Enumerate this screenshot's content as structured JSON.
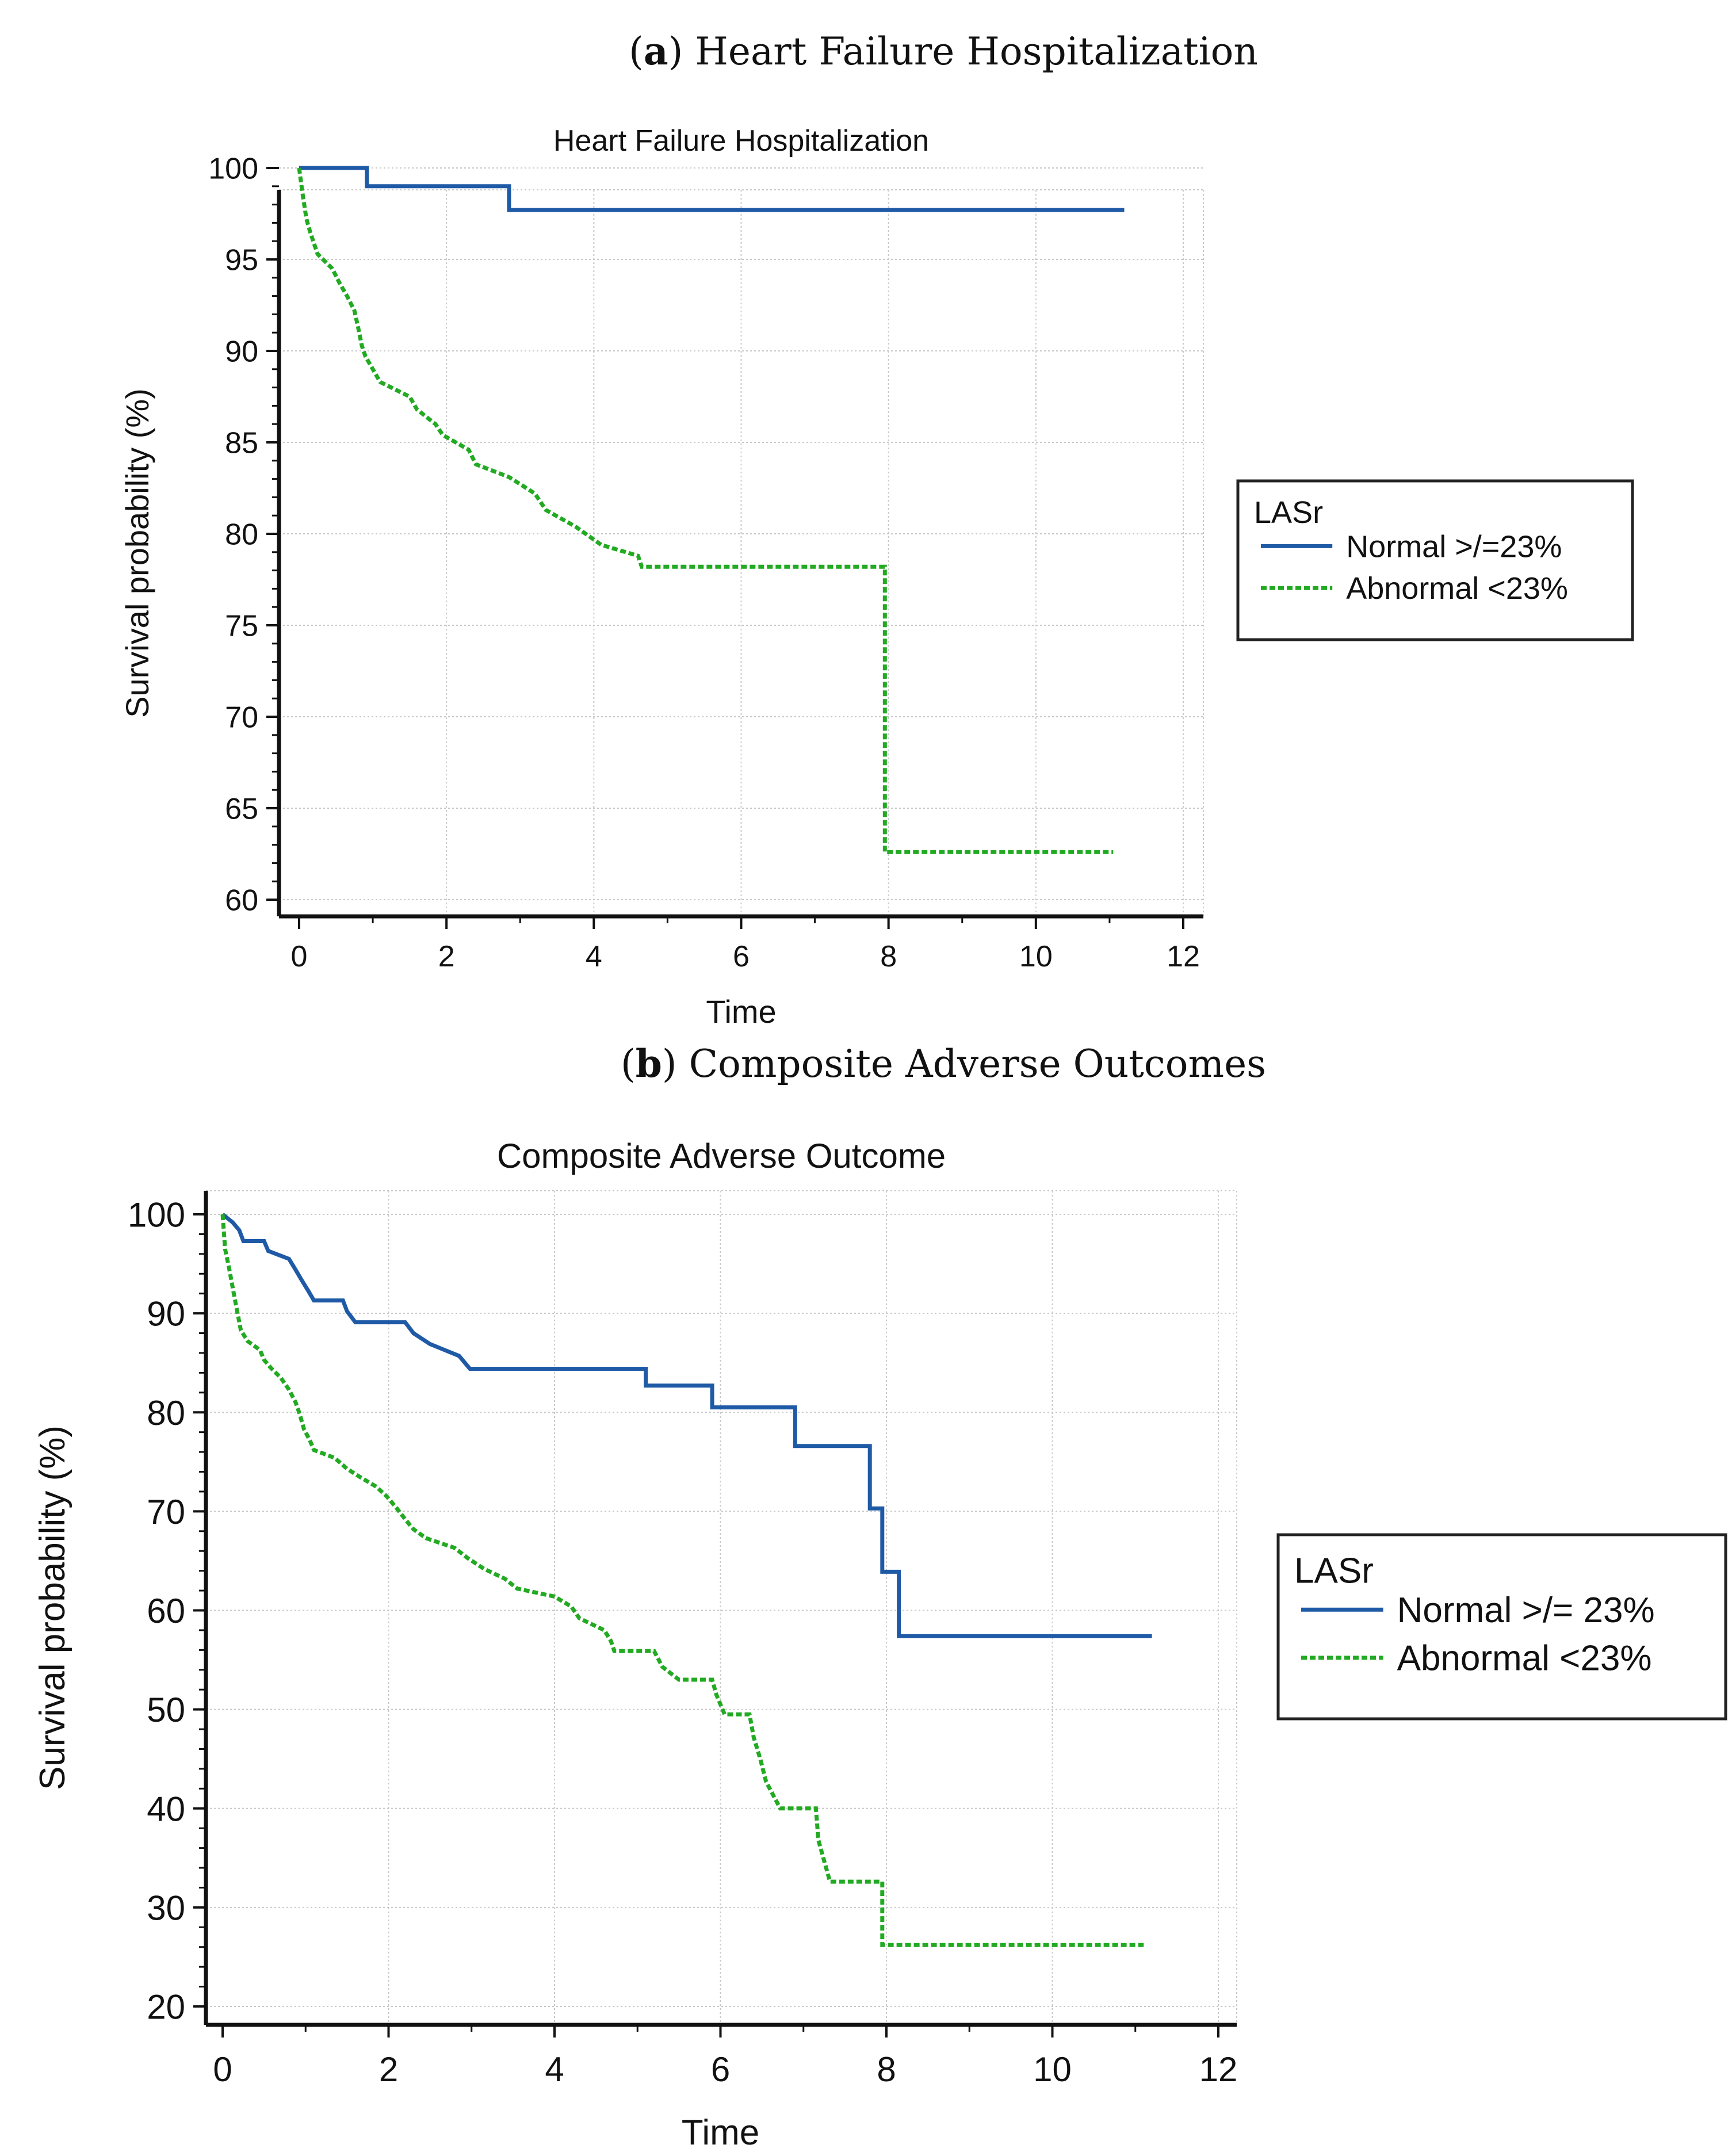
{
  "panels": [
    {
      "caption_letter": "a",
      "caption_text": " Heart Failure Hospitalization",
      "chart_data": {
        "type": "line",
        "subtype": "kaplan-meier step",
        "title": "Heart Failure Hospitalization",
        "xlabel": "Time",
        "ylabel": "Survival probability (%)",
        "xlim": [
          0,
          12
        ],
        "ylim": [
          60,
          100
        ],
        "xticks": [
          0,
          2,
          4,
          6,
          8,
          10,
          12
        ],
        "yticks": [
          60,
          65,
          70,
          75,
          80,
          85,
          90,
          95,
          100
        ],
        "grid": true,
        "legend_title": "LASr",
        "legend_position": "right",
        "series": [
          {
            "name": "Normal >/=23%",
            "color": "#1f5aa6",
            "style": "solid",
            "points": [
              [
                0,
                100
              ],
              [
                0.92,
                100
              ],
              [
                0.92,
                99
              ],
              [
                2.85,
                99
              ],
              [
                2.85,
                97.7
              ],
              [
                11.2,
                97.7
              ]
            ]
          },
          {
            "name": "Abnormal <23%",
            "color": "#22aa22",
            "style": "dashed",
            "points": [
              [
                0,
                100
              ],
              [
                0.05,
                98.5
              ],
              [
                0.1,
                97.2
              ],
              [
                0.15,
                96.5
              ],
              [
                0.25,
                95.3
              ],
              [
                0.45,
                94.5
              ],
              [
                0.55,
                93.7
              ],
              [
                0.65,
                93
              ],
              [
                0.75,
                92.2
              ],
              [
                0.8,
                91.3
              ],
              [
                0.85,
                90.3
              ],
              [
                0.9,
                89.7
              ],
              [
                1.0,
                89
              ],
              [
                1.1,
                88.3
              ],
              [
                1.5,
                87.5
              ],
              [
                1.6,
                86.8
              ],
              [
                1.85,
                86
              ],
              [
                1.95,
                85.4
              ],
              [
                2.3,
                84.6
              ],
              [
                2.4,
                83.8
              ],
              [
                2.85,
                83.1
              ],
              [
                3.2,
                82.2
              ],
              [
                3.35,
                81.3
              ],
              [
                3.75,
                80.4
              ],
              [
                4.1,
                79.4
              ],
              [
                4.6,
                78.8
              ],
              [
                4.65,
                78.2
              ],
              [
                7.95,
                78.2
              ],
              [
                7.95,
                62.6
              ],
              [
                11.05,
                62.6
              ]
            ]
          }
        ]
      }
    },
    {
      "caption_letter": "b",
      "caption_text": " Composite Adverse Outcomes",
      "chart_data": {
        "type": "line",
        "subtype": "kaplan-meier step",
        "title": "Composite Adverse Outcome",
        "xlabel": "Time",
        "ylabel": "Survival probability (%)",
        "xlim": [
          0,
          12
        ],
        "ylim": [
          20,
          100
        ],
        "xticks": [
          0,
          2,
          4,
          6,
          8,
          10,
          12
        ],
        "yticks": [
          20,
          30,
          40,
          50,
          60,
          70,
          80,
          90,
          100
        ],
        "grid": true,
        "legend_title": "LASr",
        "legend_position": "right",
        "series": [
          {
            "name": "Normal >/= 23%",
            "color": "#1f5aa6",
            "style": "solid",
            "points": [
              [
                0,
                100
              ],
              [
                0.12,
                99.2
              ],
              [
                0.2,
                98.4
              ],
              [
                0.25,
                97.3
              ],
              [
                0.5,
                97.3
              ],
              [
                0.55,
                96.3
              ],
              [
                0.8,
                95.5
              ],
              [
                0.88,
                94.4
              ],
              [
                0.95,
                93.4
              ],
              [
                1.03,
                92.3
              ],
              [
                1.1,
                91.3
              ],
              [
                1.45,
                91.3
              ],
              [
                1.5,
                90.2
              ],
              [
                1.6,
                89.1
              ],
              [
                2.2,
                89.1
              ],
              [
                2.3,
                88
              ],
              [
                2.5,
                86.9
              ],
              [
                2.85,
                85.7
              ],
              [
                2.98,
                84.4
              ],
              [
                5.1,
                84.4
              ],
              [
                5.1,
                82.7
              ],
              [
                5.9,
                82.7
              ],
              [
                5.9,
                80.5
              ],
              [
                6.9,
                80.5
              ],
              [
                6.9,
                76.6
              ],
              [
                7.8,
                76.6
              ],
              [
                7.8,
                70.3
              ],
              [
                7.95,
                70.3
              ],
              [
                7.95,
                63.9
              ],
              [
                8.15,
                63.9
              ],
              [
                8.15,
                57.4
              ],
              [
                11.2,
                57.4
              ]
            ]
          },
          {
            "name": "Abnormal <23%",
            "color": "#22aa22",
            "style": "dashed",
            "points": [
              [
                0,
                100
              ],
              [
                0.03,
                96.5
              ],
              [
                0.08,
                94.5
              ],
              [
                0.13,
                92.2
              ],
              [
                0.18,
                90
              ],
              [
                0.22,
                88.3
              ],
              [
                0.3,
                87.2
              ],
              [
                0.45,
                86.3
              ],
              [
                0.5,
                85.3
              ],
              [
                0.58,
                84.5
              ],
              [
                0.7,
                83.5
              ],
              [
                0.8,
                82.3
              ],
              [
                0.88,
                81
              ],
              [
                0.93,
                79.8
              ],
              [
                0.98,
                78.3
              ],
              [
                1.05,
                77.2
              ],
              [
                1.1,
                76.2
              ],
              [
                1.35,
                75.4
              ],
              [
                1.5,
                74.3
              ],
              [
                1.65,
                73.5
              ],
              [
                1.85,
                72.5
              ],
              [
                1.98,
                71.5
              ],
              [
                2.1,
                70.3
              ],
              [
                2.2,
                69.2
              ],
              [
                2.3,
                68.2
              ],
              [
                2.45,
                67.3
              ],
              [
                2.8,
                66.3
              ],
              [
                2.95,
                65.3
              ],
              [
                3.15,
                64.2
              ],
              [
                3.4,
                63.2
              ],
              [
                3.55,
                62.2
              ],
              [
                4.0,
                61.4
              ],
              [
                4.2,
                60.4
              ],
              [
                4.3,
                59.2
              ],
              [
                4.6,
                58
              ],
              [
                4.68,
                56.9
              ],
              [
                4.72,
                55.9
              ],
              [
                5.2,
                55.9
              ],
              [
                5.3,
                54.3
              ],
              [
                5.5,
                53
              ],
              [
                5.9,
                53
              ],
              [
                5.95,
                51.5
              ],
              [
                6.05,
                49.5
              ],
              [
                6.35,
                49.5
              ],
              [
                6.4,
                47.2
              ],
              [
                6.48,
                45
              ],
              [
                6.55,
                42.7
              ],
              [
                6.72,
                40
              ],
              [
                7.15,
                40
              ],
              [
                7.18,
                36.8
              ],
              [
                7.32,
                32.6
              ],
              [
                7.95,
                32.6
              ],
              [
                7.95,
                26.2
              ],
              [
                11.1,
                26.2
              ]
            ]
          }
        ]
      }
    }
  ]
}
